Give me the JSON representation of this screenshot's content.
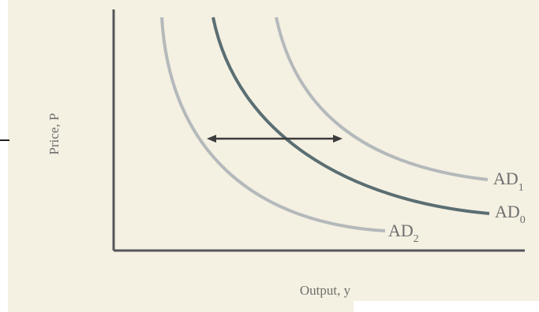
{
  "figure": {
    "axis_labels": {
      "y": "Price, P",
      "x": "Output, y"
    },
    "curves": [
      {
        "id": "ad2",
        "label": "AD",
        "subscript": "2",
        "color": "#b4b9bb"
      },
      {
        "id": "ad0",
        "label": "AD",
        "subscript": "0",
        "color": "#5a6e72"
      },
      {
        "id": "ad1",
        "label": "AD",
        "subscript": "1",
        "color": "#b4b9bb"
      }
    ],
    "shift_arrow": {
      "color": "#3c3c3c"
    },
    "colors": {
      "background": "#f4f0e2",
      "axis": "#55565a",
      "label_text": "#6e6e6e"
    }
  }
}
